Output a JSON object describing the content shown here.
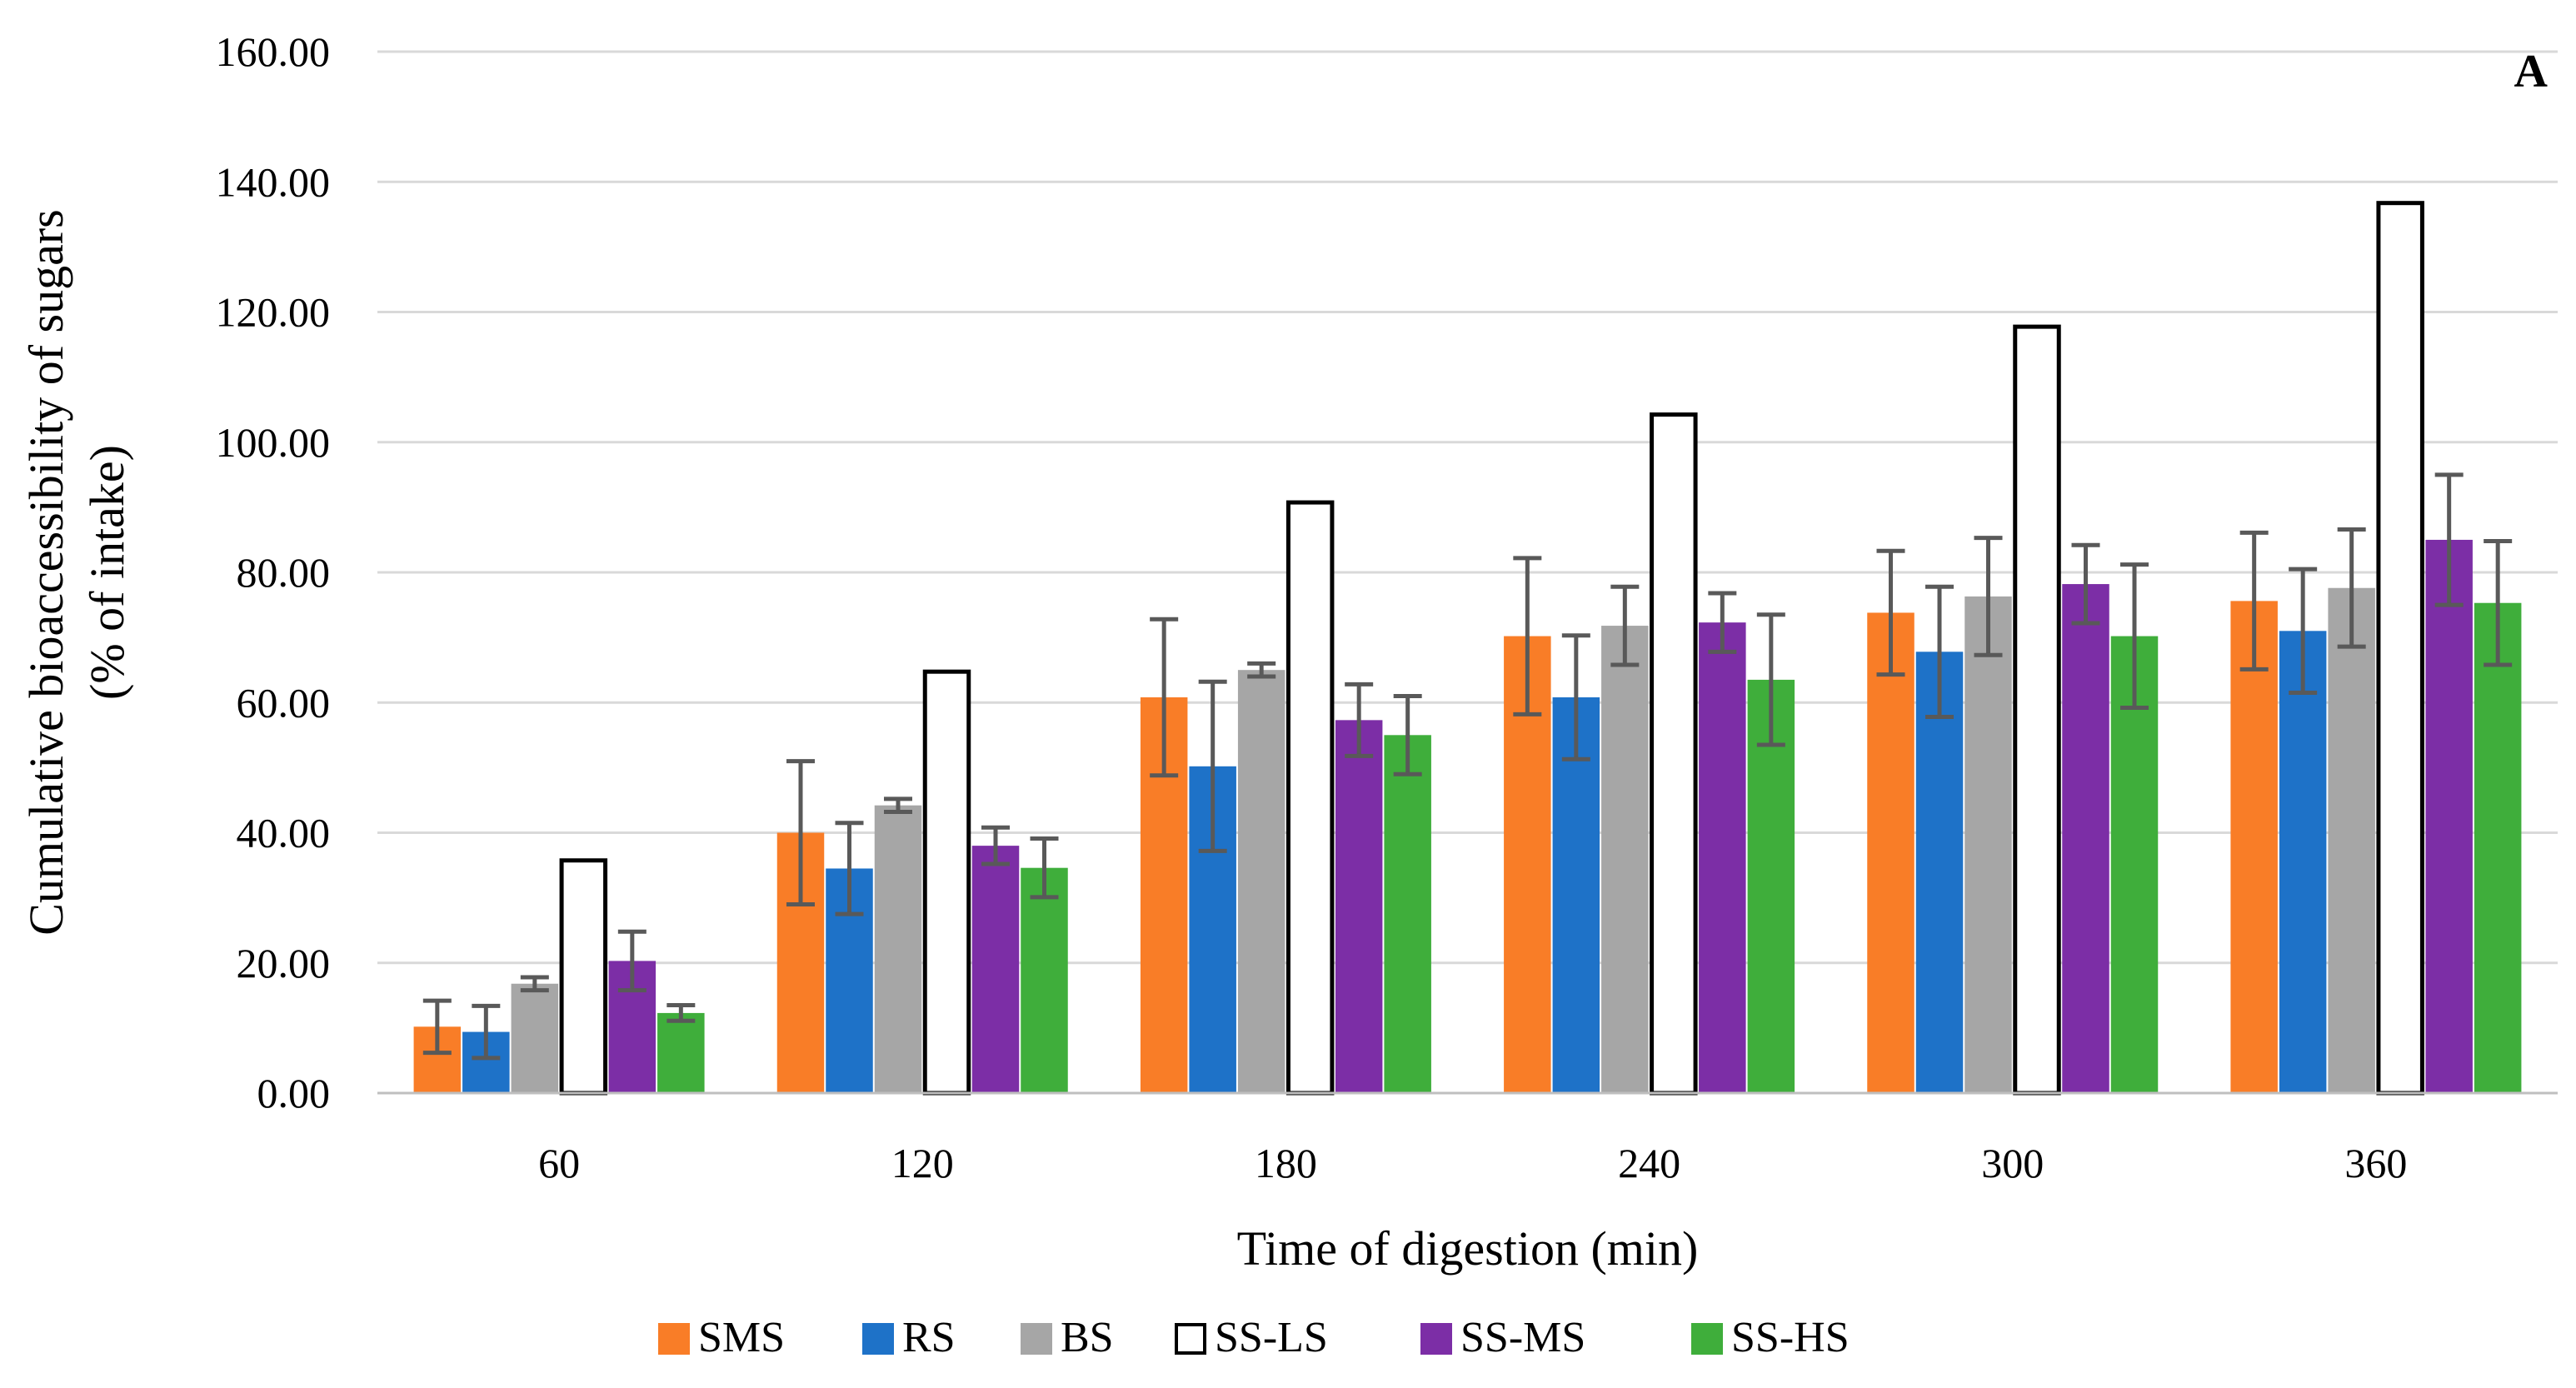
{
  "chart_data": {
    "type": "bar",
    "panel_label": "A",
    "xlabel": "Time of digestion (min)",
    "ylabel_lines": [
      "Cumulative bioaccessibility of sugars",
      "(% of intake)"
    ],
    "ylim": [
      0,
      160
    ],
    "y_ticks": [
      "0.00",
      "20.00",
      "40.00",
      "60.00",
      "80.00",
      "100.00",
      "120.00",
      "140.00",
      "160.00"
    ],
    "grid": true,
    "legend_position": "bottom",
    "categories": [
      "60",
      "120",
      "180",
      "240",
      "300",
      "360"
    ],
    "series": [
      {
        "name": "SMS",
        "color": "#f97d27",
        "outline": false,
        "values": [
          10.2,
          40.0,
          60.8,
          70.2,
          73.8,
          75.6
        ],
        "errors": [
          4.0,
          11.0,
          12.0,
          12.0,
          9.5,
          10.5
        ]
      },
      {
        "name": "RS",
        "color": "#1e72c8",
        "outline": false,
        "values": [
          9.4,
          34.5,
          50.2,
          60.8,
          67.8,
          71.0
        ],
        "errors": [
          4.0,
          7.0,
          13.0,
          9.5,
          10.0,
          9.5
        ]
      },
      {
        "name": "BS",
        "color": "#a6a6a6",
        "outline": false,
        "values": [
          16.8,
          44.2,
          65.0,
          71.8,
          76.3,
          77.6
        ],
        "errors": [
          1.0,
          1.0,
          1.0,
          6.0,
          9.0,
          9.0
        ]
      },
      {
        "name": "SS-LS",
        "color": "#ffffff",
        "outline": true,
        "values": [
          36.0,
          65.0,
          91.0,
          104.5,
          118.0,
          137.0
        ],
        "errors": [
          0,
          0,
          0,
          0,
          0,
          0
        ]
      },
      {
        "name": "SS-MS",
        "color": "#7c2ea6",
        "outline": false,
        "values": [
          20.3,
          38.0,
          57.3,
          72.3,
          78.2,
          85.0
        ],
        "errors": [
          4.5,
          2.8,
          5.5,
          4.5,
          6.0,
          10.0
        ]
      },
      {
        "name": "SS-HS",
        "color": "#3fae3b",
        "outline": false,
        "values": [
          12.3,
          34.6,
          55.0,
          63.5,
          70.2,
          75.3
        ],
        "errors": [
          1.2,
          4.5,
          6.0,
          10.0,
          11.0,
          9.5
        ]
      }
    ]
  }
}
